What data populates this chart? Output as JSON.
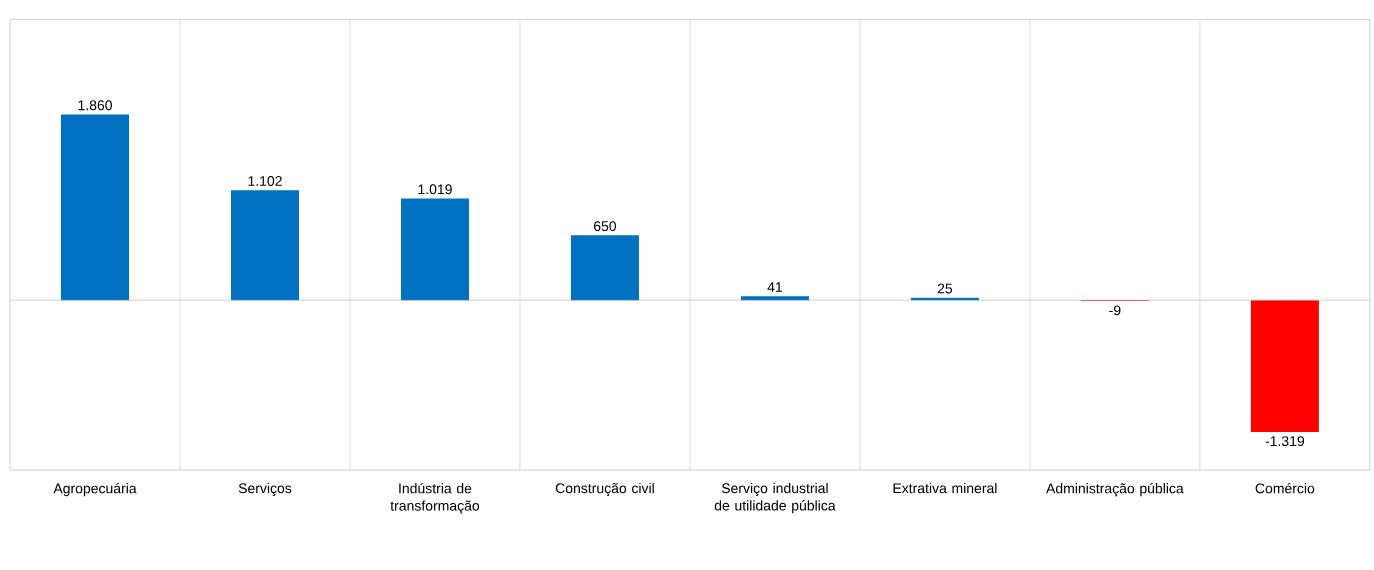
{
  "chart_data": {
    "type": "bar",
    "categories": [
      "Agropecuária",
      "Serviços",
      "Indústria de transformação",
      "Construção civil",
      "Serviço industrial de utilidade pública",
      "Extrativa mineral",
      "Administração pública",
      "Comércio"
    ],
    "values": [
      1860,
      1102,
      1019,
      650,
      41,
      25,
      -9,
      -1319
    ],
    "value_labels": [
      "1.860",
      "1.102",
      "1.019",
      "650",
      "41",
      "25",
      "-9",
      "-1.319"
    ],
    "colors": [
      "#0070c0",
      "#0070c0",
      "#0070c0",
      "#0070c0",
      "#0070c0",
      "#0070c0",
      "#ff0000",
      "#ff0000"
    ],
    "grid": "x"
  }
}
